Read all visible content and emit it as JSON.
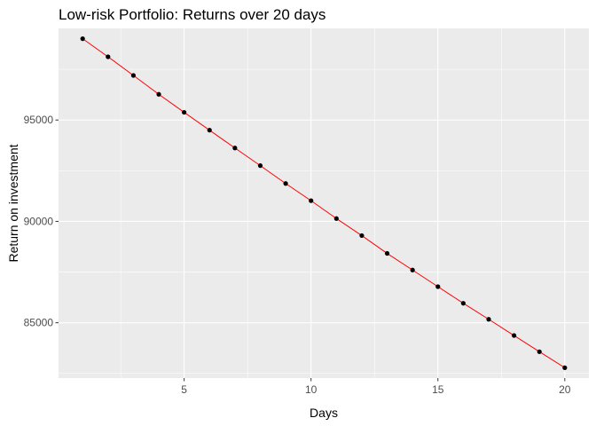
{
  "chart_data": {
    "type": "line",
    "title": "Low-risk Portfolio: Returns over 20 days",
    "xlabel": "Days",
    "ylabel": "Return on investment",
    "x": [
      1,
      2,
      3,
      4,
      5,
      6,
      7,
      8,
      9,
      10,
      11,
      12,
      13,
      14,
      15,
      16,
      17,
      18,
      19,
      20
    ],
    "series": [
      {
        "values": [
          99010,
          98120,
          97200,
          96270,
          95380,
          94500,
          93620,
          92750,
          91870,
          91020,
          90140,
          89300,
          88420,
          87600,
          86780,
          85960,
          85170,
          84370,
          83570,
          82780
        ]
      }
    ],
    "xlim": [
      0.05,
      20.95
    ],
    "ylim": [
      82270,
      99520
    ],
    "x_ticks": [
      5,
      10,
      15,
      20
    ],
    "x_tick_labels": [
      "5",
      "10",
      "15",
      "20"
    ],
    "y_ticks": [
      85000,
      90000,
      95000
    ],
    "y_tick_labels": [
      "85000",
      "90000",
      "95000"
    ],
    "grid": true,
    "legend": "none",
    "colors": {
      "panel_background": "#ebebeb",
      "grid_major": "#ffffff",
      "line": "#ff0000",
      "points": "#000000",
      "tick_mark": "#333333"
    }
  }
}
